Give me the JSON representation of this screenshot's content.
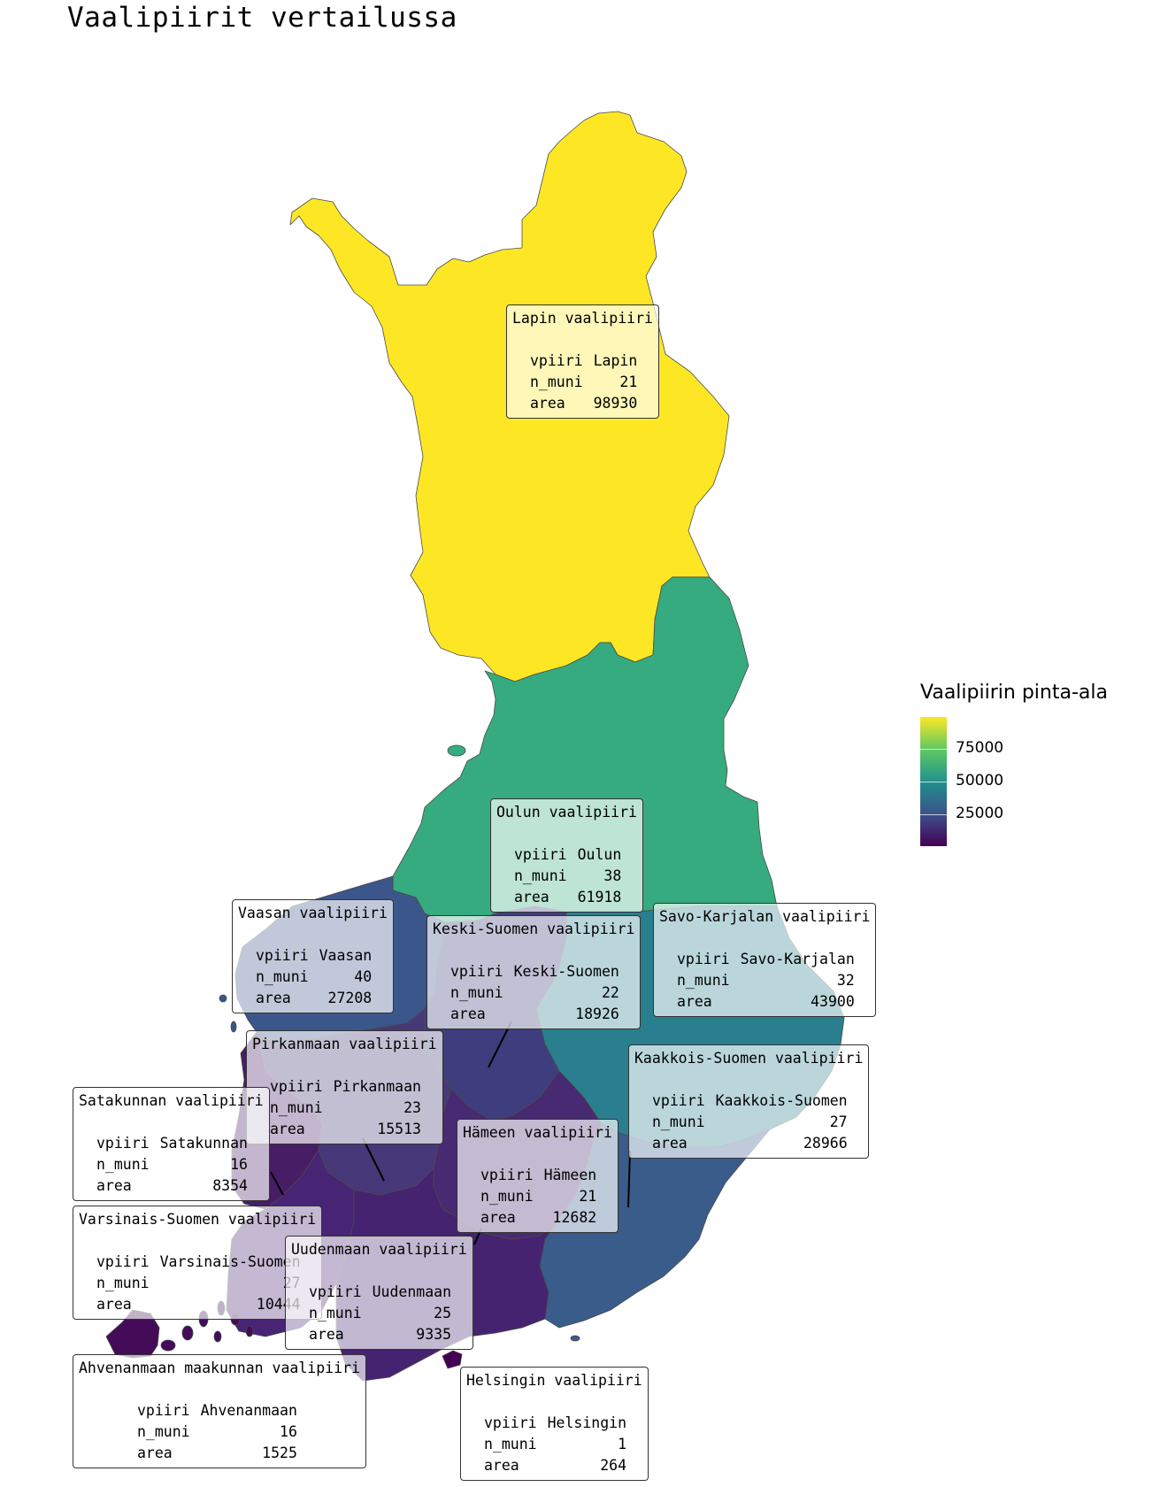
{
  "title": "Vaalipiirit vertailussa",
  "legend": {
    "title": "Vaalipiirin pinta-ala",
    "ticks": [
      "75000",
      "50000",
      "25000"
    ],
    "colors": [
      "#fde725",
      "#5ec962",
      "#21918c",
      "#3b528b",
      "#440154"
    ]
  },
  "row_labels": {
    "vpiiri": "vpiiri",
    "n_muni": "n_muni",
    "area": "area"
  },
  "districts": [
    {
      "title": "Lapin vaalipiiri",
      "vpiiri": "Lapin",
      "n_muni": "21",
      "area": "98930",
      "fill": "#fde725"
    },
    {
      "title": "Oulun vaalipiiri",
      "vpiiri": "Oulun",
      "n_muni": "38",
      "area": "61918",
      "fill": "#35ab7f"
    },
    {
      "title": "Vaasan vaalipiiri",
      "vpiiri": "Vaasan",
      "n_muni": "40",
      "area": "27208",
      "fill": "#3b568a"
    },
    {
      "title": "Keski-Suomen vaalipiiri",
      "vpiiri": "Keski-Suomen",
      "n_muni": "22",
      "area": "18926",
      "fill": "#3e3e7e"
    },
    {
      "title": "Savo-Karjalan vaalipiiri",
      "vpiiri": "Savo-Karjalan",
      "n_muni": "32",
      "area": "43900",
      "fill": "#2a7f8e"
    },
    {
      "title": "Pirkanmaan vaalipiiri",
      "vpiiri": "Pirkanmaan",
      "n_muni": "23",
      "area": "15513",
      "fill": "#463878"
    },
    {
      "title": "Kaakkois-Suomen vaalipiiri",
      "vpiiri": "Kaakkois-Suomen",
      "n_muni": "27",
      "area": "28966",
      "fill": "#395c8b"
    },
    {
      "title": "Satakunnan vaalipiiri",
      "vpiiri": "Satakunnan",
      "n_muni": "16",
      "area": "8354",
      "fill": "#471e66"
    },
    {
      "title": "Hämeen vaalipiiri",
      "vpiiri": "Hämeen",
      "n_muni": "21",
      "area": "12682",
      "fill": "#472a72"
    },
    {
      "title": "Varsinais-Suomen vaalipiiri",
      "vpiiri": "Varsinais-Suomen",
      "n_muni": "27",
      "area": "10444",
      "fill": "#482474"
    },
    {
      "title": "Uudenmaan vaalipiiri",
      "vpiiri": "Uudenmaan",
      "n_muni": "25",
      "area": "9335",
      "fill": "#462370"
    },
    {
      "title": "Ahvenanmaan maakunnan vaalipiiri",
      "vpiiri": "Ahvenanmaan",
      "n_muni": "16",
      "area": "1525",
      "fill": "#440b58"
    },
    {
      "title": "Helsingin vaalipiiri",
      "vpiiri": "Helsingin",
      "n_muni": "1",
      "area": "264",
      "fill": "#440154"
    }
  ]
}
